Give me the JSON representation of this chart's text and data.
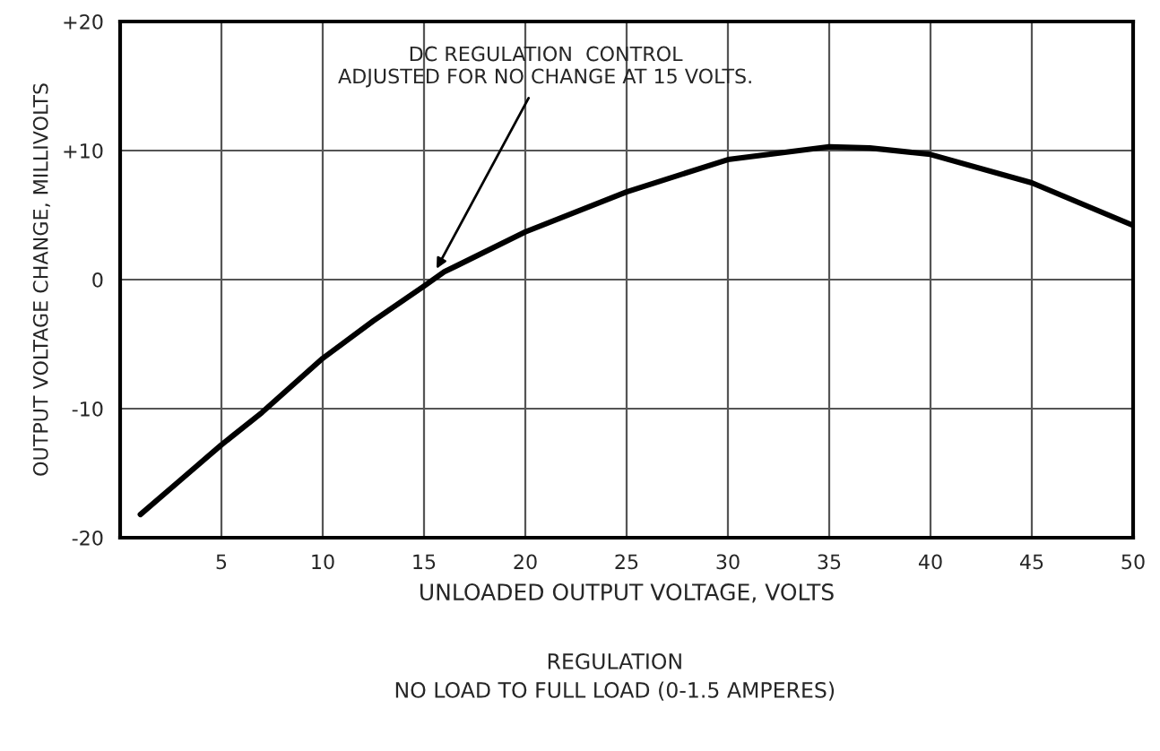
{
  "chart_data": {
    "type": "line",
    "title": "REGULATION",
    "subtitle": "NO LOAD TO FULL LOAD (0-1.5 AMPERES)",
    "xlabel": "UNLOADED OUTPUT VOLTAGE, VOLTS",
    "ylabel": "OUTPUT VOLTAGE CHANGE, MILLIVOLTS",
    "series": [
      {
        "color": "#000000",
        "x": [
          1,
          3,
          5,
          7,
          10,
          12.5,
          15,
          16,
          20,
          25,
          30,
          35,
          37,
          40,
          45,
          50
        ],
        "values": [
          -18.2,
          -15.5,
          -12.8,
          -10.3,
          -6.1,
          -3.2,
          -0.5,
          0.6,
          3.7,
          6.8,
          9.3,
          10.3,
          10.2,
          9.7,
          7.5,
          4.2
        ]
      }
    ],
    "annotations": [
      {
        "text": "DC REGULATION  CONTROL\nADJUSTED FOR NO CHANGE AT 15 VOLTS.",
        "x": 15.5,
        "y": 0.5
      }
    ],
    "xlim": [
      0,
      50
    ],
    "xticks": [
      {
        "value": 0,
        "label": null
      },
      5,
      10,
      15,
      20,
      25,
      30,
      35,
      40,
      45,
      50
    ],
    "ylim": [
      -20,
      20
    ],
    "yticks": [
      {
        "value": -20,
        "label": "-20"
      },
      {
        "value": -10,
        "label": "-10"
      },
      0,
      {
        "value": 10,
        "label": "+10"
      },
      {
        "value": 20,
        "label": "+20"
      }
    ],
    "grid": true,
    "marker": "none",
    "line_style": "solid"
  }
}
